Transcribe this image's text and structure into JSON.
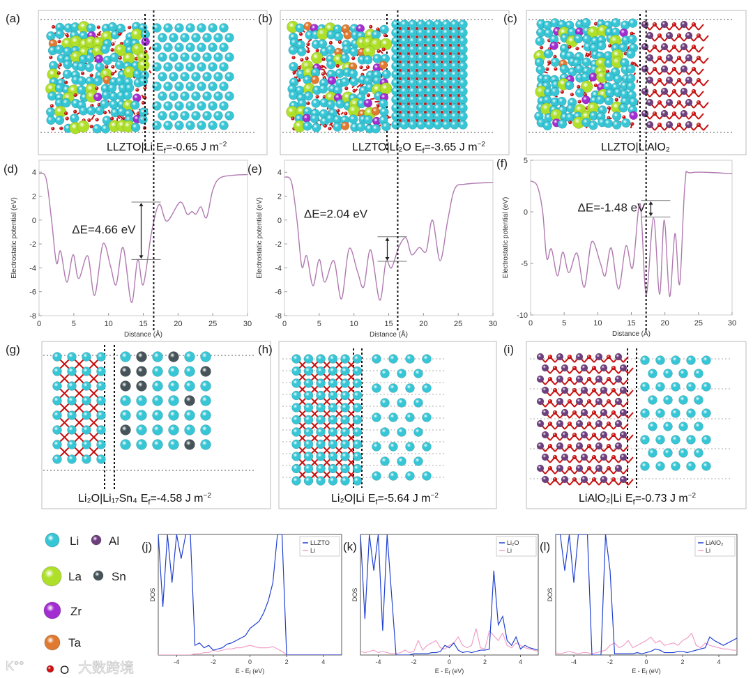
{
  "panels": {
    "a": {
      "label": "(a)",
      "interface": "LLZTO|Li",
      "ef": "E",
      "ef_sub": "f",
      "ef_value": "=-0.65 J m",
      "ef_exp": "−2"
    },
    "b": {
      "label": "(b)",
      "interface": "LLZTO|Li₂O",
      "ef": "E",
      "ef_sub": "f",
      "ef_value": "=-3.65 J m",
      "ef_exp": "−2"
    },
    "c": {
      "label": "(c)",
      "interface": "LLZTO|LiAlO₂"
    },
    "g": {
      "label": "(g)",
      "interface": "Li₂O|Li₁₇Sn₄",
      "ef": "E",
      "ef_sub": "f",
      "ef_value": "=-4.58 J m",
      "ef_exp": "−2"
    },
    "h": {
      "label": "(h)",
      "interface": "Li₂O|Li",
      "ef": "E",
      "ef_sub": "f",
      "ef_value": "=-5.64 J m",
      "ef_exp": "−2"
    },
    "i": {
      "label": "(i)",
      "interface": "LiAlO₂|Li",
      "ef": "E",
      "ef_sub": "f",
      "ef_value": "=-0.73 J m",
      "ef_exp": "−2"
    }
  },
  "legend": [
    {
      "symbol": "Li",
      "color": "#36c6d6"
    },
    {
      "symbol": "Al",
      "color": "#6e3f7e"
    },
    {
      "symbol": "La",
      "color": "#aee02a"
    },
    {
      "symbol": "Sn",
      "color": "#46545a"
    },
    {
      "symbol": "Zr",
      "color": "#a22ed2"
    },
    {
      "symbol": "Ta",
      "color": "#e07a30"
    },
    {
      "symbol": "O",
      "color": "#d01010"
    }
  ],
  "watermark": "大数跨境",
  "chart_data": [
    {
      "id": "d",
      "label": "(d)",
      "type": "line",
      "xlabel": "Distance (Å)",
      "ylabel": "Electrostatic potential (eV)",
      "xlim": [
        0,
        30
      ],
      "ylim": [
        -8,
        5
      ],
      "xticks": [
        "0",
        "5",
        "10",
        "15",
        "20",
        "25",
        "30"
      ],
      "yticks": [
        "4",
        "2",
        "0",
        "-2",
        "-4",
        "-6",
        "-8"
      ],
      "ytick_values": [
        4,
        2,
        0,
        -2,
        -4,
        -6,
        -8
      ],
      "interface_x": 16.5,
      "annotation": {
        "text": "ΔE=4.66 eV",
        "x": 14.7,
        "y_top": 1.5,
        "y_bottom": -3.3
      },
      "color": "#b07ab0",
      "x": [
        0,
        1,
        1.8,
        2.5,
        3.1,
        4,
        4.9,
        5.7,
        7,
        8,
        9.2,
        10.3,
        11.1,
        12.1,
        13.3,
        14.2,
        15,
        16.2,
        17.3,
        18.4,
        20.3,
        21.3,
        22,
        22.6,
        23.3,
        24.1,
        25,
        26,
        28,
        30
      ],
      "y": [
        3.9,
        3.5,
        0,
        -3.6,
        -2.6,
        -5.2,
        -2.9,
        -4.9,
        -3,
        -6.3,
        -2,
        -3.9,
        -5.4,
        -2.3,
        -6.9,
        -3.3,
        -5.4,
        -1,
        1.3,
        -0.1,
        1.5,
        0.5,
        0.7,
        0.5,
        1.1,
        0.2,
        2.5,
        3.5,
        3.75,
        3.8
      ]
    },
    {
      "id": "e",
      "label": "(e)",
      "type": "line",
      "xlabel": "Distance (Å)",
      "ylabel": "Electrostatic potential (eV)",
      "xlim": [
        0,
        30
      ],
      "ylim": [
        -8,
        5
      ],
      "xticks": [
        "0",
        "5",
        "10",
        "15",
        "20",
        "25",
        "30"
      ],
      "yticks": [
        "4",
        "2",
        "0",
        "-2",
        "-4",
        "-6",
        "-8"
      ],
      "ytick_values": [
        4,
        2,
        0,
        -2,
        -4,
        -6,
        -8
      ],
      "interface_x": 16.3,
      "annotation": {
        "text": "ΔE=2.04 eV",
        "x": 14.8,
        "y_top": -1.4,
        "y_bottom": -3.45
      },
      "color": "#b07ab0",
      "x": [
        0,
        1,
        1.8,
        2.5,
        3.2,
        4.1,
        5,
        5.8,
        7.1,
        8.2,
        9.3,
        10.5,
        11.4,
        12.4,
        13.7,
        14.6,
        15.4,
        16.5,
        17.5,
        18.3,
        19.4,
        20.4,
        21.3,
        22.4,
        23.5,
        24.5,
        26,
        30
      ],
      "y": [
        3.6,
        3.2,
        0,
        -3.9,
        -3,
        -5.5,
        -3.3,
        -5.2,
        -3.4,
        -6.6,
        -2.4,
        -4.3,
        -5.6,
        -2.5,
        -6.7,
        -3.5,
        -4,
        -2.2,
        -1.5,
        -2.9,
        -2.3,
        -2.6,
        0,
        -3.4,
        0,
        2.6,
        3,
        3.15
      ]
    },
    {
      "id": "f",
      "label": "(f)",
      "type": "line",
      "xlabel": "Distance (Å)",
      "ylabel": "Electrostatic potential (eV)",
      "xlim": [
        0,
        30
      ],
      "ylim": [
        -10,
        5
      ],
      "xticks": [
        "0",
        "5",
        "10",
        "15",
        "20",
        "25",
        "30"
      ],
      "yticks": [
        "5",
        "0",
        "-5",
        "-10"
      ],
      "ytick_values": [
        5,
        0,
        -5,
        -10
      ],
      "interface_x": 17.2,
      "annotation": {
        "text": "ΔE=-1.48 eV",
        "x": 17.9,
        "y_top": 1.1,
        "y_bottom": -0.5
      },
      "color": "#b07ab0",
      "x": [
        0,
        1,
        1.8,
        2.4,
        3.1,
        4,
        4.8,
        5.7,
        6.9,
        8,
        9.1,
        10.4,
        11.1,
        12,
        13.1,
        14.2,
        15.2,
        16.3,
        17.2,
        18.3,
        19.2,
        19.9,
        20.7,
        21.5,
        22.2,
        23,
        24,
        30
      ],
      "y": [
        3,
        2.5,
        0,
        -4.5,
        -3.6,
        -6.2,
        -3.9,
        -5.9,
        -4,
        -7.3,
        -2.9,
        -5,
        -6.2,
        -3.5,
        -7.5,
        -3.3,
        -5.4,
        0.8,
        -8,
        -0.6,
        -8,
        -0.8,
        -8.2,
        -2.1,
        -7,
        2.8,
        3.8,
        3.7
      ]
    },
    {
      "id": "j",
      "label": "(j)",
      "type": "line",
      "xlabel": "E - E",
      "xlabel_sub": "f",
      "xlabel_unit": " (eV)",
      "ylabel": "DOS",
      "xlim": [
        -5,
        5
      ],
      "ylim": [
        0,
        100
      ],
      "x_start": -5,
      "x_step": 0.25,
      "xticks": [
        "-4",
        "-2",
        "0",
        "2",
        "4"
      ],
      "xtick_values": [
        -4,
        -2,
        0,
        2,
        4
      ],
      "legend_position": "top-right",
      "series": [
        {
          "name": "LLZTO",
          "color": "#2040d0",
          "values": [
            100,
            40,
            100,
            60,
            100,
            80,
            100,
            100,
            8,
            10,
            6,
            8,
            4,
            5,
            6,
            9,
            10,
            12,
            14,
            16,
            22,
            25,
            28,
            35,
            45,
            60,
            100,
            100,
            0,
            0,
            0,
            0,
            0,
            0,
            0,
            0,
            0,
            0,
            0,
            0,
            0
          ]
        },
        {
          "name": "Li",
          "color": "#f0a0c8",
          "values": [
            0,
            0,
            0,
            0,
            0,
            0,
            0,
            0,
            1,
            1,
            2,
            2,
            4,
            3,
            4,
            5,
            5,
            6,
            6,
            7,
            8,
            7,
            6,
            6,
            6,
            7,
            5,
            3,
            0,
            0,
            0,
            0,
            0,
            0,
            0,
            0,
            0,
            0,
            0,
            0,
            0
          ]
        }
      ]
    },
    {
      "id": "k",
      "label": "(k)",
      "type": "line",
      "xlabel": "E - E",
      "xlabel_sub": "f",
      "xlabel_unit": " (eV)",
      "ylabel": "DOS",
      "xlim": [
        -5,
        5
      ],
      "ylim": [
        0,
        100
      ],
      "x_start": -5,
      "x_step": 0.25,
      "xticks": [
        "-4",
        "-2",
        "0",
        "2",
        "4"
      ],
      "xtick_values": [
        -4,
        -2,
        0,
        2,
        4
      ],
      "legend_position": "top-right",
      "series": [
        {
          "name": "Li₂O",
          "color": "#2040d0",
          "values": [
            100,
            30,
            100,
            70,
            100,
            20,
            100,
            50,
            0,
            0,
            0,
            0,
            1,
            1,
            1,
            1,
            2,
            2,
            3,
            8,
            6,
            10,
            4,
            2,
            3,
            2,
            3,
            4,
            4,
            5,
            70,
            25,
            32,
            12,
            8,
            15,
            5,
            8,
            6,
            5,
            4
          ]
        },
        {
          "name": "Li",
          "color": "#f0a0c8",
          "values": [
            3,
            2,
            3,
            4,
            2,
            3,
            2,
            1,
            1,
            2,
            4,
            2,
            3,
            12,
            4,
            8,
            10,
            12,
            6,
            5,
            8,
            10,
            15,
            8,
            6,
            8,
            22,
            6,
            5,
            20,
            16,
            12,
            18,
            8,
            6,
            10,
            8,
            6,
            5,
            4,
            3
          ]
        }
      ]
    },
    {
      "id": "l",
      "label": "(l)",
      "type": "line",
      "xlabel": "E - E",
      "xlabel_sub": "f",
      "xlabel_unit": " (eV)",
      "ylabel": "DOS",
      "xlim": [
        -5,
        5
      ],
      "ylim": [
        0,
        100
      ],
      "x_start": -5,
      "x_step": 0.25,
      "xticks": [
        "-4",
        "-2",
        "0",
        "2",
        "4"
      ],
      "xtick_values": [
        -4,
        -2,
        0,
        2,
        4
      ],
      "legend_position": "top-right",
      "series": [
        {
          "name": "LiAlO₂",
          "color": "#2040d0",
          "values": [
            100,
            100,
            70,
            100,
            60,
            100,
            100,
            100,
            0,
            0,
            0,
            100,
            70,
            1,
            1,
            1,
            1,
            1,
            2,
            1,
            2,
            3,
            5,
            4,
            2,
            2,
            2,
            3,
            3,
            2,
            3,
            4,
            5,
            6,
            15,
            12,
            10,
            8,
            10,
            12,
            14
          ]
        },
        {
          "name": "Li",
          "color": "#f0a0c8",
          "values": [
            2,
            1,
            2,
            3,
            2,
            1,
            2,
            2,
            1,
            2,
            3,
            4,
            8,
            10,
            6,
            8,
            12,
            6,
            8,
            10,
            12,
            15,
            10,
            12,
            8,
            9,
            10,
            8,
            12,
            14,
            18,
            8,
            6,
            10,
            8,
            7,
            6,
            5,
            5,
            4,
            4
          ]
        }
      ]
    }
  ]
}
